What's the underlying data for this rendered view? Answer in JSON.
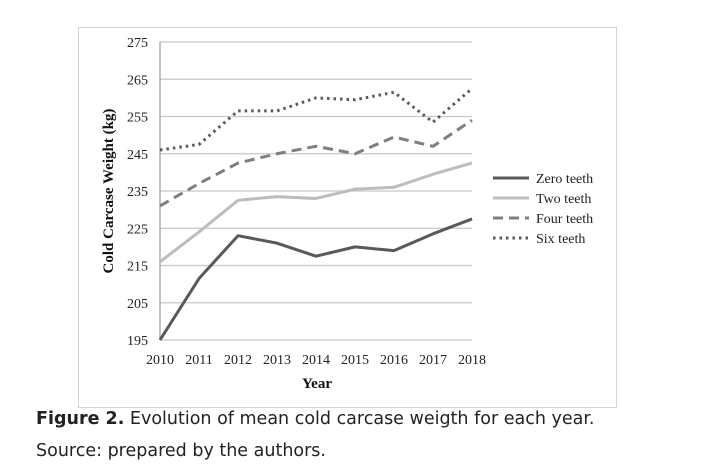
{
  "chart_data": {
    "type": "line",
    "title": "",
    "xlabel": "Year",
    "ylabel": "Cold Carcase Weight (kg)",
    "x": [
      "2010",
      "2011",
      "2012",
      "2013",
      "2014",
      "2015",
      "2016",
      "2017",
      "2018"
    ],
    "ylim": [
      195,
      275
    ],
    "yticks": [
      195,
      205,
      215,
      225,
      235,
      245,
      255,
      265,
      275
    ],
    "grid": true,
    "legend_position": "right",
    "series": [
      {
        "name": "Zero teeth",
        "color": "#595959",
        "dash": "solid",
        "values": [
          195,
          211.5,
          223,
          221,
          217.5,
          220,
          219,
          223.5,
          227.5
        ]
      },
      {
        "name": "Two teeth",
        "color": "#bdbdbd",
        "dash": "solid",
        "values": [
          216,
          224,
          232.5,
          233.5,
          233,
          235.5,
          236,
          239.5,
          242.5
        ]
      },
      {
        "name": "Four teeth",
        "color": "#7f7f7f",
        "dash": "dashed",
        "values": [
          231,
          237,
          242.5,
          245,
          247,
          245,
          249.5,
          247,
          254
        ]
      },
      {
        "name": "Six teeth",
        "color": "#595959",
        "dash": "dotted",
        "values": [
          246,
          247.5,
          256.5,
          256.5,
          260,
          259.5,
          261.5,
          253.5,
          262.5
        ]
      }
    ]
  },
  "caption": {
    "label": "Figure 2.",
    "text": " Evolution of mean cold carcase weigth for each year.",
    "source": "Source: prepared by the authors."
  }
}
